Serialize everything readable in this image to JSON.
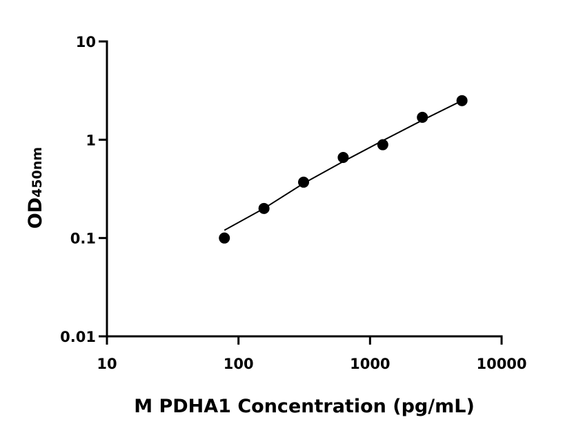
{
  "chart_data": {
    "type": "scatter",
    "x_label": "M PDHA1 Concentration (pg/mL)",
    "y_label": "OD",
    "y_label_subscript": "450nm",
    "xscale": "log",
    "yscale": "log",
    "xlim": [
      10,
      10000
    ],
    "ylim": [
      0.01,
      10
    ],
    "xticks": [
      10,
      100,
      1000,
      10000
    ],
    "yticks": [
      0.01,
      0.1,
      1,
      10
    ],
    "series": [
      {
        "type": "scatter",
        "color": "#000000",
        "x": [
          78.125,
          156.25,
          312.5,
          625,
          1250,
          2500,
          5000
        ],
        "values": [
          0.1,
          0.2,
          0.37,
          0.66,
          0.89,
          1.69,
          2.5
        ]
      },
      {
        "type": "line",
        "color": "#000000",
        "x": [
          78.125,
          156.25,
          312.5,
          625,
          1250,
          2500,
          5000
        ],
        "values": [
          0.12,
          0.2,
          0.36,
          0.6,
          0.98,
          1.58,
          2.5
        ]
      }
    ]
  }
}
